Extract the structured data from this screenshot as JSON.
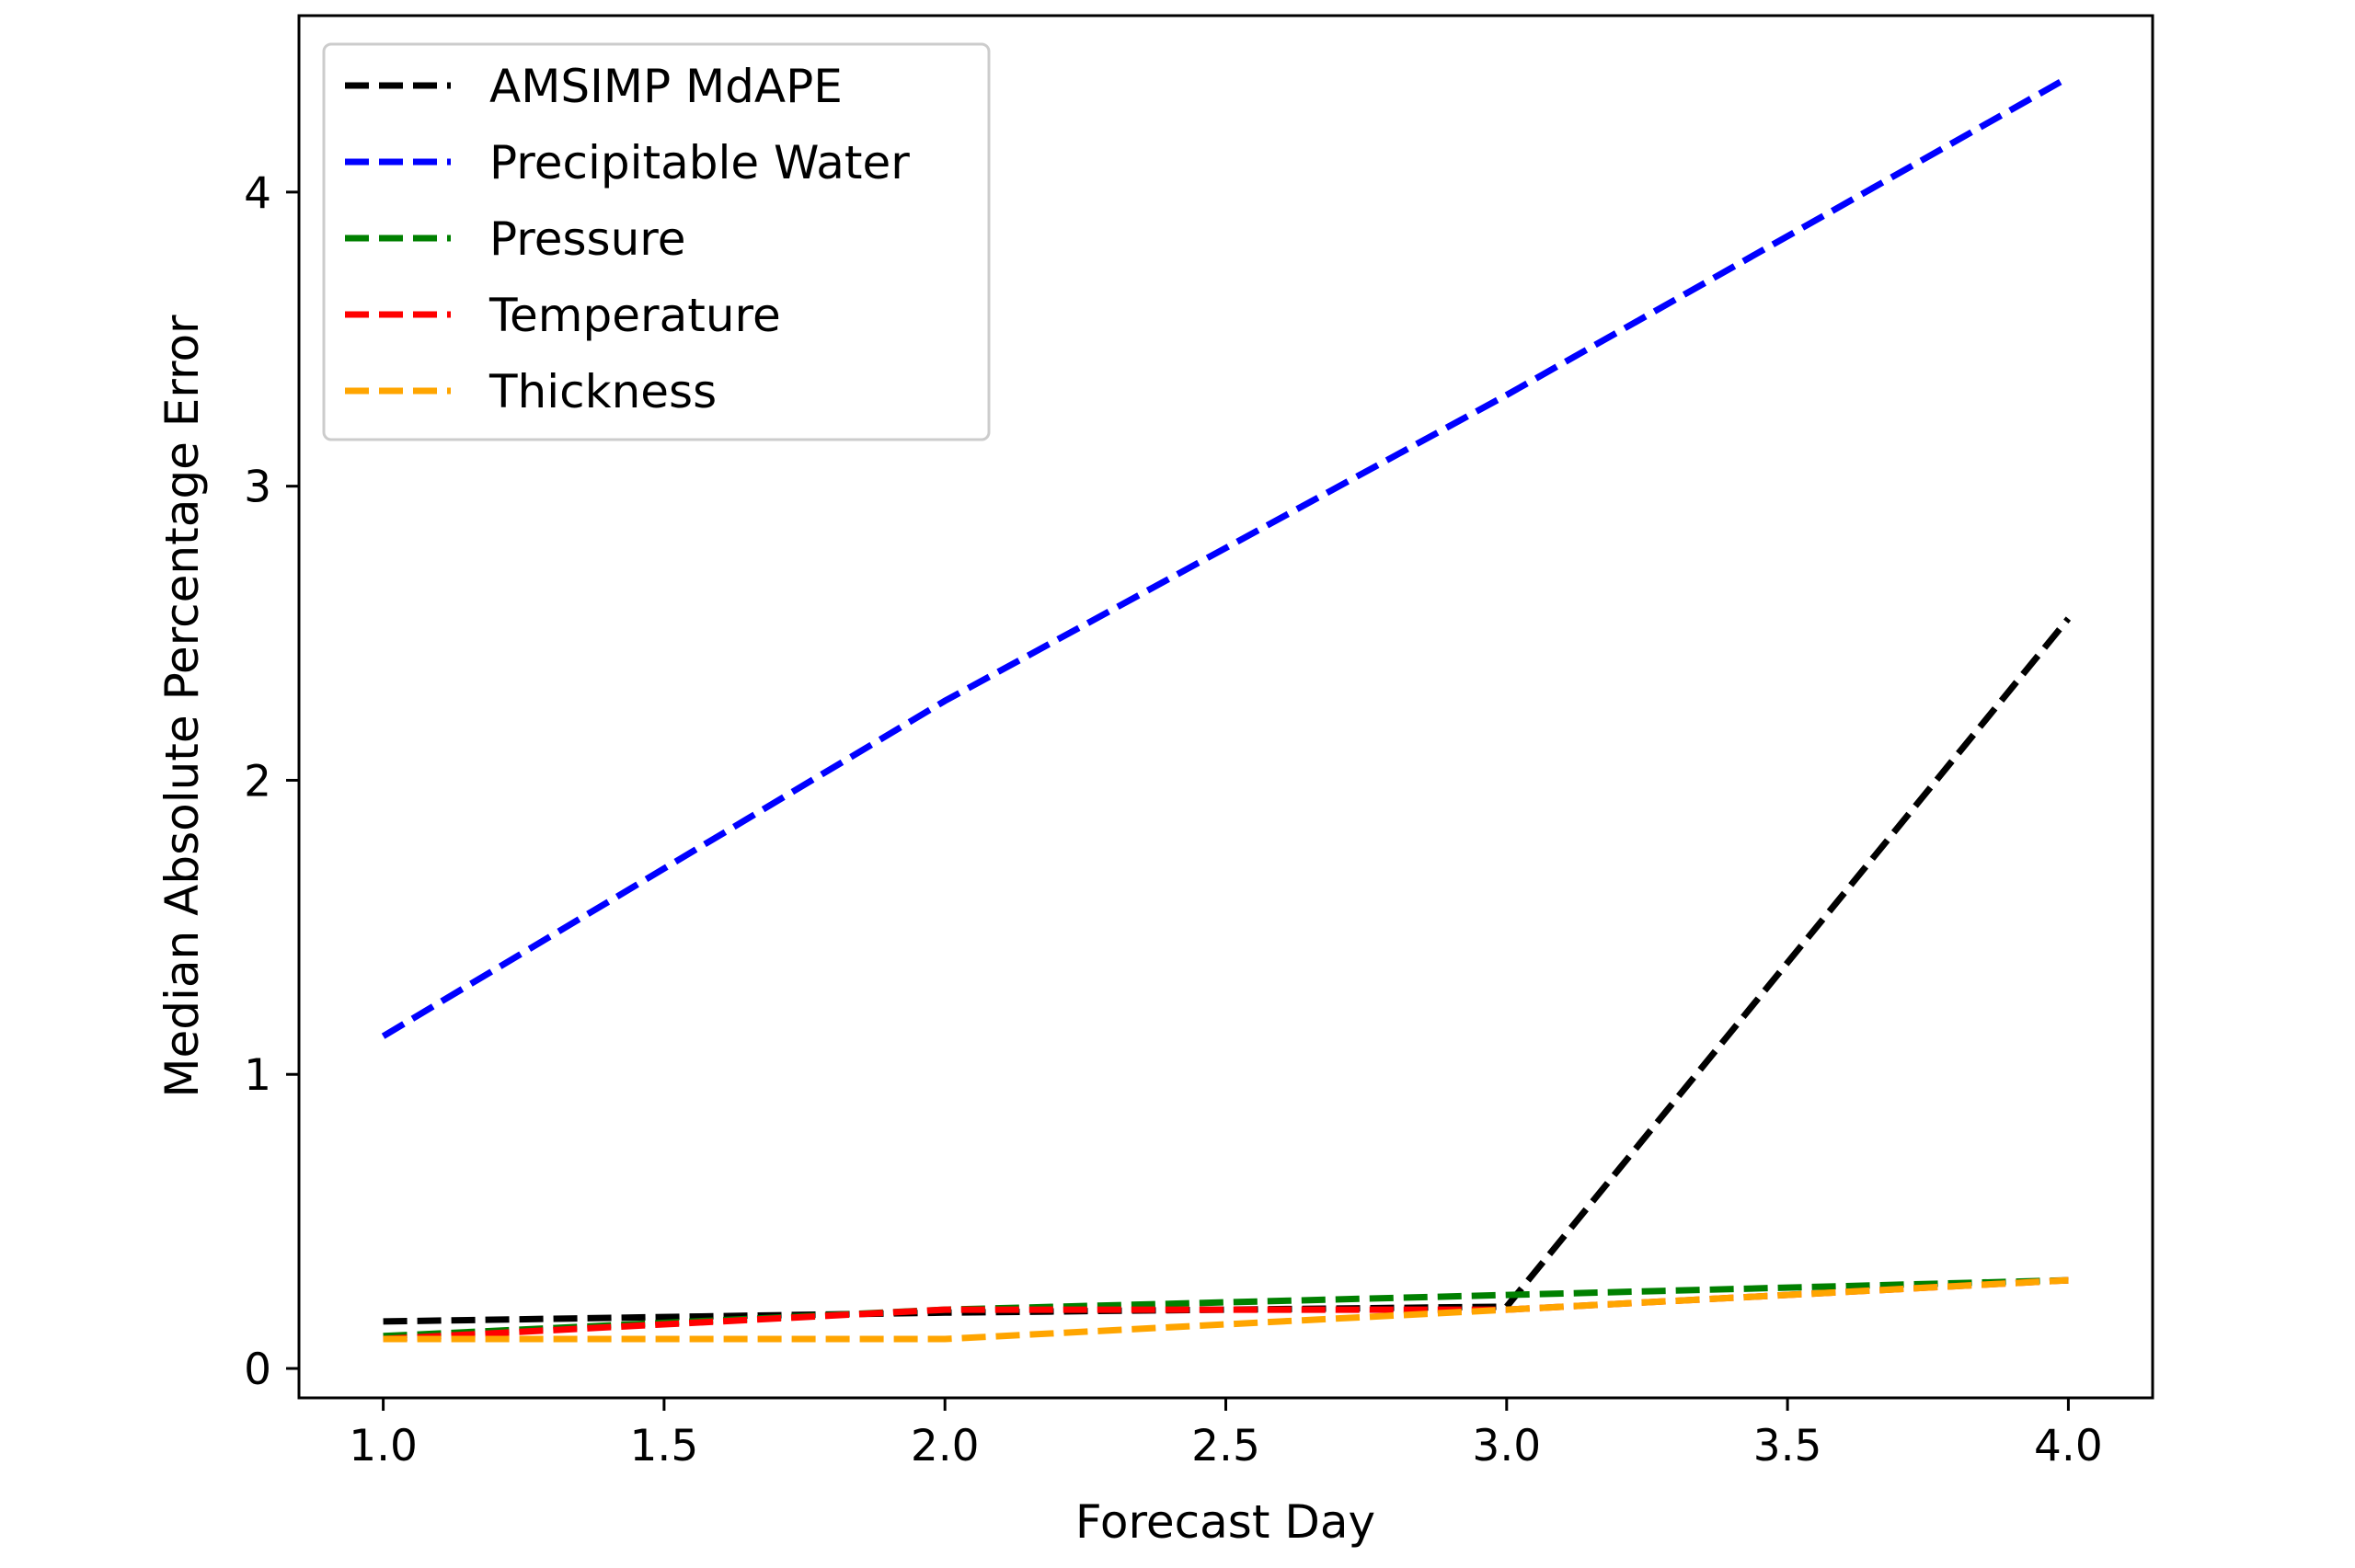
{
  "chart_data": {
    "type": "line",
    "title": "",
    "xlabel": "Forecast Day",
    "ylabel": "Median Absolute Percentage Error",
    "xlim": [
      0.85,
      4.15
    ],
    "ylim": [
      -0.1,
      4.6
    ],
    "x_ticks": [
      1.0,
      1.5,
      2.0,
      2.5,
      3.0,
      3.5,
      4.0
    ],
    "x_tick_labels": [
      "1.0",
      "1.5",
      "2.0",
      "2.5",
      "3.0",
      "3.5",
      "4.0"
    ],
    "y_ticks": [
      0,
      1,
      2,
      3,
      4
    ],
    "y_tick_labels": [
      "0",
      "1",
      "2",
      "3",
      "4"
    ],
    "grid": false,
    "legend_position": "top-left",
    "line_style": "dashed",
    "series": [
      {
        "name": "AMSIMP MdAPE",
        "color": "#000000",
        "x": [
          1,
          2,
          3,
          4
        ],
        "y": [
          0.16,
          0.19,
          0.21,
          2.55
        ]
      },
      {
        "name": "Precipitable Water",
        "color": "#0000ff",
        "x": [
          1,
          2,
          3,
          4
        ],
        "y": [
          1.13,
          2.27,
          3.31,
          4.39
        ]
      },
      {
        "name": "Pressure",
        "color": "#008000",
        "x": [
          1,
          2,
          3,
          4
        ],
        "y": [
          0.11,
          0.2,
          0.25,
          0.3
        ]
      },
      {
        "name": "Temperature",
        "color": "#ff0000",
        "x": [
          1,
          2,
          3,
          4
        ],
        "y": [
          0.1,
          0.2,
          0.2,
          0.3
        ]
      },
      {
        "name": "Thickness",
        "color": "#ffa500",
        "x": [
          1,
          2,
          3,
          4
        ],
        "y": [
          0.1,
          0.1,
          0.2,
          0.3
        ]
      }
    ]
  }
}
